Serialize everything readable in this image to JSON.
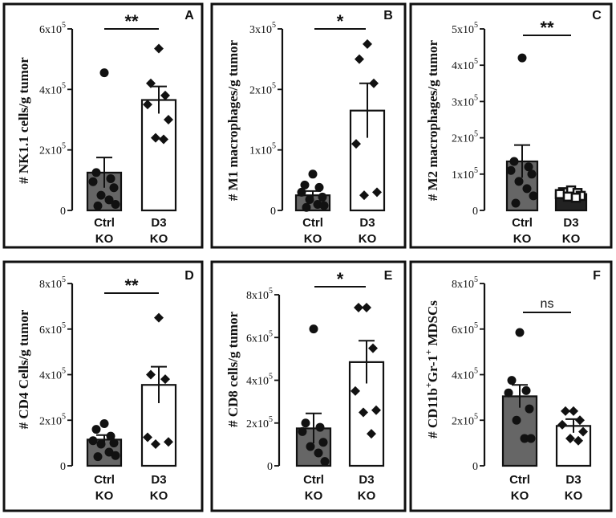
{
  "chart_data": [
    {
      "id": "A",
      "type": "bar",
      "panel_label": "A",
      "ylabel": "# NK1.1 cells/g tumor",
      "yticks": [
        {
          "base": "0",
          "exp": ""
        },
        {
          "base": "2x10",
          "exp": "5"
        },
        {
          "base": "4x10",
          "exp": "5"
        },
        {
          "base": "6x10",
          "exp": "5"
        }
      ],
      "ylim": [
        0,
        600000
      ],
      "categories": [
        {
          "line1": "Ctrl",
          "line2": "KO"
        },
        {
          "line1": "D3",
          "line2": "KO"
        }
      ],
      "bar_colors": [
        "#666666",
        "#ffffff"
      ],
      "means": [
        125000,
        365000
      ],
      "sem": [
        50000,
        45000
      ],
      "points": [
        [
          455000,
          125000,
          105000,
          95000,
          75000,
          50000,
          35000,
          20000,
          15000
        ],
        [
          535000,
          420000,
          380000,
          350000,
          300000,
          240000,
          235000
        ]
      ],
      "markers": [
        "circle",
        "diamond"
      ],
      "significance": "**"
    },
    {
      "id": "B",
      "type": "bar",
      "panel_label": "B",
      "ylabel": "# M1 macrophages/g tumor",
      "yticks": [
        {
          "base": "0",
          "exp": ""
        },
        {
          "base": "1x10",
          "exp": "5"
        },
        {
          "base": "2x10",
          "exp": "5"
        },
        {
          "base": "3x10",
          "exp": "5"
        }
      ],
      "ylim": [
        0,
        300000
      ],
      "categories": [
        {
          "line1": "Ctrl",
          "line2": "KO"
        },
        {
          "line1": "D3",
          "line2": "KO"
        }
      ],
      "bar_colors": [
        "#666666",
        "#ffffff"
      ],
      "means": [
        25000,
        165000
      ],
      "sem": [
        7000,
        45000
      ],
      "points": [
        [
          60000,
          42000,
          38000,
          30000,
          22000,
          18000,
          10000,
          8000,
          5000
        ],
        [
          275000,
          250000,
          210000,
          110000,
          30000,
          25000
        ]
      ],
      "markers": [
        "circle",
        "diamond"
      ],
      "significance": "*"
    },
    {
      "id": "C",
      "type": "bar",
      "panel_label": "C",
      "ylabel": "# M2 macrophages/g tumor",
      "yticks": [
        {
          "base": "0",
          "exp": ""
        },
        {
          "base": "1x10",
          "exp": "5"
        },
        {
          "base": "2x10",
          "exp": "5"
        },
        {
          "base": "3x10",
          "exp": "5"
        },
        {
          "base": "4x10",
          "exp": "5"
        },
        {
          "base": "5x10",
          "exp": "5"
        }
      ],
      "ylim": [
        0,
        500000
      ],
      "categories": [
        {
          "line1": "Ctrl",
          "line2": "KO"
        },
        {
          "line1": "D3",
          "line2": "KO"
        }
      ],
      "bar_colors": [
        "#666666",
        "#222222"
      ],
      "means": [
        135000,
        45000
      ],
      "sem": [
        45000,
        7000
      ],
      "points": [
        [
          420000,
          135000,
          120000,
          110000,
          100000,
          80000,
          60000,
          40000,
          20000
        ],
        [
          55000,
          50000,
          48000,
          45000,
          40000,
          38000,
          35000
        ]
      ],
      "markers": [
        "circle",
        "square"
      ],
      "significance": "**"
    },
    {
      "id": "D",
      "type": "bar",
      "panel_label": "D",
      "ylabel": "# CD4 Cells/g tumor",
      "yticks": [
        {
          "base": "0",
          "exp": ""
        },
        {
          "base": "2x10",
          "exp": "5"
        },
        {
          "base": "4x10",
          "exp": "5"
        },
        {
          "base": "6x10",
          "exp": "5"
        },
        {
          "base": "8x10",
          "exp": "5"
        }
      ],
      "ylim": [
        0,
        800000
      ],
      "categories": [
        {
          "line1": "Ctrl",
          "line2": "KO"
        },
        {
          "line1": "D3",
          "line2": "KO"
        }
      ],
      "bar_colors": [
        "#666666",
        "#ffffff"
      ],
      "means": [
        115000,
        355000
      ],
      "sem": [
        20000,
        80000
      ],
      "points": [
        [
          185000,
          160000,
          130000,
          110000,
          100000,
          95000,
          60000,
          45000,
          40000
        ],
        [
          650000,
          400000,
          380000,
          125000,
          105000,
          95000
        ]
      ],
      "markers": [
        "circle",
        "diamond"
      ],
      "significance": "**"
    },
    {
      "id": "E",
      "type": "bar",
      "panel_label": "E",
      "ylabel": "# CD8 cells/g tumor",
      "yticks": [
        {
          "base": "0",
          "exp": ""
        },
        {
          "base": "2x10",
          "exp": "5"
        },
        {
          "base": "4x10",
          "exp": "5"
        },
        {
          "base": "6x10",
          "exp": "5"
        },
        {
          "base": "8x10",
          "exp": "5"
        }
      ],
      "ylim": [
        0,
        800000
      ],
      "categories": [
        {
          "line1": "Ctrl",
          "line2": "KO"
        },
        {
          "line1": "D3",
          "line2": "KO"
        }
      ],
      "bar_colors": [
        "#666666",
        "#ffffff"
      ],
      "means": [
        175000,
        485000
      ],
      "sem": [
        70000,
        100000
      ],
      "points": [
        [
          640000,
          200000,
          180000,
          160000,
          110000,
          90000,
          60000,
          20000
        ],
        [
          740000,
          740000,
          550000,
          350000,
          260000,
          250000,
          150000
        ]
      ],
      "markers": [
        "circle",
        "diamond"
      ],
      "significance": "*"
    },
    {
      "id": "F",
      "type": "bar",
      "panel_label": "F",
      "ylabel_main": "# CD11b",
      "ylabel_sup1": "+",
      "ylabel_mid": "Gr-1",
      "ylabel_sup2": "+",
      "ylabel_tail": " MDSCs",
      "yticks": [
        {
          "base": "0",
          "exp": ""
        },
        {
          "base": "2x10",
          "exp": "5"
        },
        {
          "base": "4x10",
          "exp": "5"
        },
        {
          "base": "6x10",
          "exp": "5"
        },
        {
          "base": "8x10",
          "exp": "5"
        }
      ],
      "ylim": [
        0,
        800000
      ],
      "categories": [
        {
          "line1": "Ctrl",
          "line2": "KO"
        },
        {
          "line1": "D3",
          "line2": "KO"
        }
      ],
      "bar_colors": [
        "#666666",
        "#ffffff"
      ],
      "means": [
        305000,
        175000
      ],
      "sem": [
        50000,
        30000
      ],
      "points": [
        [
          585000,
          375000,
          330000,
          320000,
          250000,
          200000,
          120000,
          120000
        ],
        [
          240000,
          240000,
          200000,
          180000,
          150000,
          120000,
          110000
        ]
      ],
      "markers": [
        "circle",
        "diamond"
      ],
      "significance": "ns"
    }
  ]
}
